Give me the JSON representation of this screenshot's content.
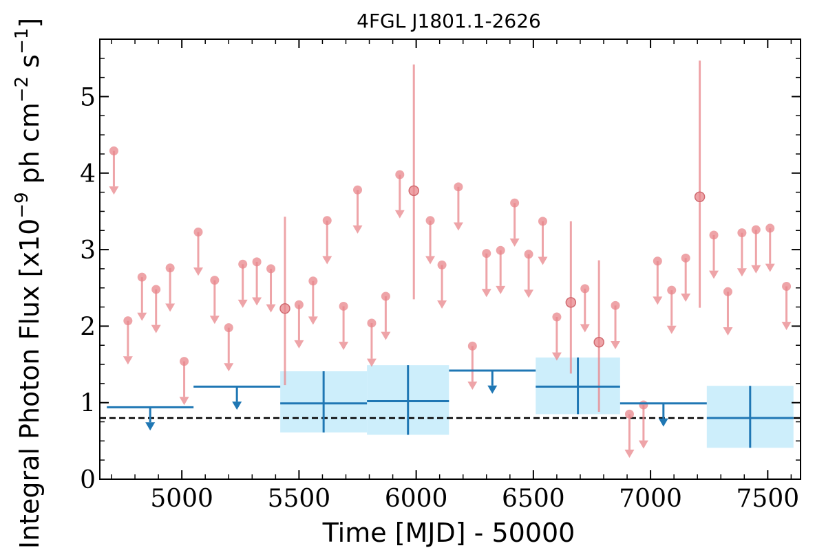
{
  "chart_data": {
    "type": "scatter",
    "title": "4FGL J1801.1-2626",
    "xlabel": "Time [MJD] - 50000",
    "ylabel_parts": {
      "prefix": "Integral Photon Flux [x10",
      "exp1": "−9",
      "mid": " ph cm",
      "exp2": "−2",
      "mid2": " s",
      "exp3": "−1",
      "suffix": "]"
    },
    "xlim": [
      4650,
      7640
    ],
    "ylim": [
      0,
      5.75
    ],
    "xticks": [
      5000,
      5500,
      6000,
      6500,
      7000,
      7500
    ],
    "yticks": [
      0,
      1,
      2,
      3,
      4,
      5
    ],
    "xtick_labels": [
      "5000",
      "5500",
      "6000",
      "6500",
      "7000",
      "7500"
    ],
    "ytick_labels": [
      "0",
      "1",
      "2",
      "3",
      "4",
      "5"
    ],
    "reference_line": {
      "y": 0.8,
      "style": "dashed",
      "color": "#000000"
    },
    "colors": {
      "fine": "#e8868b",
      "coarse": "#1f77b4",
      "band": "#cdeefb"
    },
    "fine_upper_limits": [
      {
        "x": 4710,
        "y": 4.29
      },
      {
        "x": 4770,
        "y": 2.07
      },
      {
        "x": 4830,
        "y": 2.64
      },
      {
        "x": 4890,
        "y": 2.48
      },
      {
        "x": 4950,
        "y": 2.76
      },
      {
        "x": 5010,
        "y": 1.54
      },
      {
        "x": 5070,
        "y": 3.23
      },
      {
        "x": 5140,
        "y": 2.6
      },
      {
        "x": 5200,
        "y": 1.98
      },
      {
        "x": 5260,
        "y": 2.81
      },
      {
        "x": 5320,
        "y": 2.84
      },
      {
        "x": 5380,
        "y": 2.75
      },
      {
        "x": 5500,
        "y": 2.28
      },
      {
        "x": 5560,
        "y": 2.59
      },
      {
        "x": 5620,
        "y": 3.38
      },
      {
        "x": 5690,
        "y": 2.26
      },
      {
        "x": 5750,
        "y": 3.78
      },
      {
        "x": 5810,
        "y": 2.04
      },
      {
        "x": 5870,
        "y": 2.39
      },
      {
        "x": 5930,
        "y": 3.98
      },
      {
        "x": 6060,
        "y": 3.38
      },
      {
        "x": 6110,
        "y": 2.8
      },
      {
        "x": 6180,
        "y": 3.82
      },
      {
        "x": 6240,
        "y": 1.74
      },
      {
        "x": 6300,
        "y": 2.95
      },
      {
        "x": 6360,
        "y": 2.99
      },
      {
        "x": 6420,
        "y": 3.61
      },
      {
        "x": 6480,
        "y": 2.94
      },
      {
        "x": 6540,
        "y": 3.37
      },
      {
        "x": 6600,
        "y": 2.12
      },
      {
        "x": 6720,
        "y": 2.49
      },
      {
        "x": 6850,
        "y": 2.27
      },
      {
        "x": 6910,
        "y": 0.85
      },
      {
        "x": 6970,
        "y": 0.97
      },
      {
        "x": 7030,
        "y": 2.85
      },
      {
        "x": 7090,
        "y": 2.47
      },
      {
        "x": 7150,
        "y": 2.89
      },
      {
        "x": 7270,
        "y": 3.19
      },
      {
        "x": 7330,
        "y": 2.45
      },
      {
        "x": 7390,
        "y": 3.22
      },
      {
        "x": 7450,
        "y": 3.26
      },
      {
        "x": 7510,
        "y": 3.28
      },
      {
        "x": 7580,
        "y": 2.52
      }
    ],
    "fine_detections": [
      {
        "x": 5440,
        "y": 2.23,
        "lo": 1.23,
        "hi": 3.43
      },
      {
        "x": 5990,
        "y": 3.77,
        "lo": 2.35,
        "hi": 5.42
      },
      {
        "x": 6660,
        "y": 2.31,
        "lo": 1.38,
        "hi": 3.37
      },
      {
        "x": 6780,
        "y": 1.79,
        "lo": 0.88,
        "hi": 2.86
      },
      {
        "x": 7210,
        "y": 3.69,
        "lo": 2.24,
        "hi": 5.47
      }
    ],
    "coarse_upper_limits": [
      {
        "x0": 4680,
        "x1": 5050,
        "y": 0.94
      },
      {
        "x0": 5050,
        "x1": 5420,
        "y": 1.21
      },
      {
        "x0": 6140,
        "x1": 6510,
        "y": 1.42
      },
      {
        "x0": 6870,
        "x1": 7240,
        "y": 0.99
      }
    ],
    "coarse_detections": [
      {
        "x0": 5420,
        "x1": 5790,
        "y": 0.99,
        "lo": 0.61,
        "hi": 1.41
      },
      {
        "x0": 5790,
        "x1": 6140,
        "y": 1.02,
        "lo": 0.58,
        "hi": 1.49
      },
      {
        "x0": 6510,
        "x1": 6870,
        "y": 1.21,
        "lo": 0.85,
        "hi": 1.59
      },
      {
        "x0": 7240,
        "x1": 7610,
        "y": 0.8,
        "lo": 0.41,
        "hi": 1.22
      }
    ]
  }
}
